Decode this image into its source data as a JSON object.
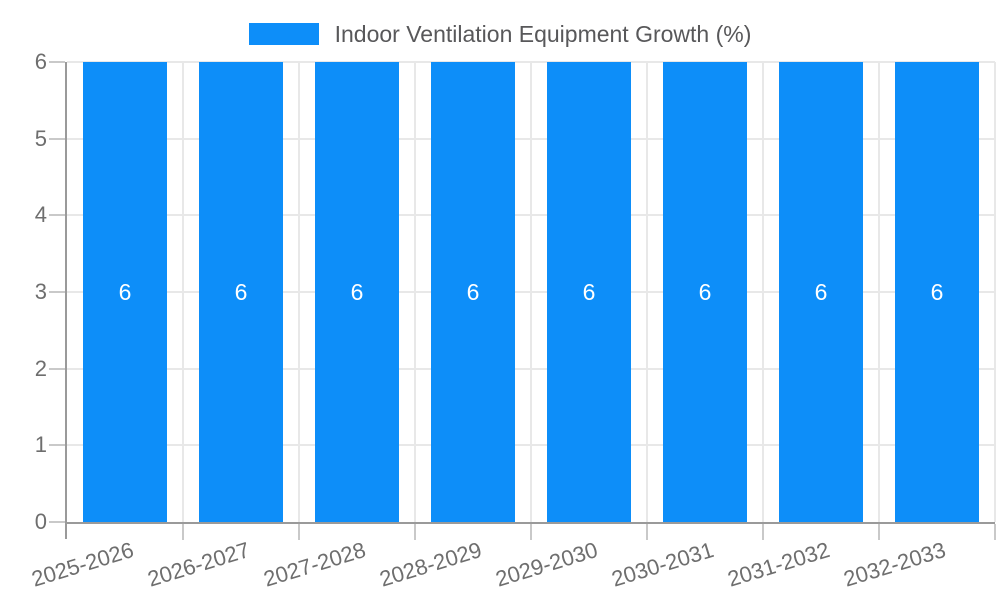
{
  "legend": {
    "label": "Indoor Ventilation Equipment Growth (%)"
  },
  "chart_data": {
    "type": "bar",
    "title": "Indoor Ventilation Equipment Growth (%)",
    "categories": [
      "2025-2026",
      "2026-2027",
      "2027-2028",
      "2028-2029",
      "2029-2030",
      "2030-2031",
      "2031-2032",
      "2032-2033"
    ],
    "values": [
      6,
      6,
      6,
      6,
      6,
      6,
      6,
      6
    ],
    "xlabel": "",
    "ylabel": "",
    "ylim": [
      0,
      6
    ],
    "yticks": [
      0,
      1,
      2,
      3,
      4,
      5,
      6
    ],
    "grid": true,
    "legend_position": "top-center",
    "colors": {
      "bar": "#0d8ef9",
      "bar_label": "#ffffff",
      "grid_line": "#e8e8e8",
      "axis_line": "#9a9a9a",
      "tick_mark": "#c9c9c9",
      "axis_text": "#6e6e6e",
      "legend_text": "#58585a",
      "background": "#ffffff"
    }
  }
}
